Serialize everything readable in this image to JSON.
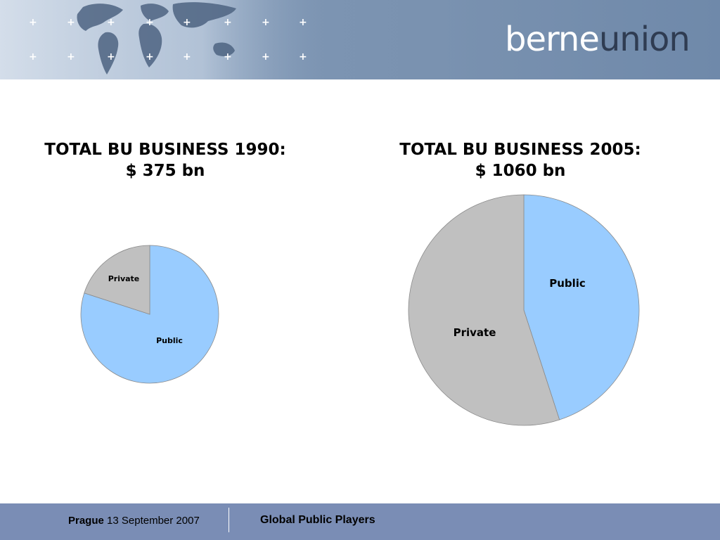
{
  "header": {
    "logo_part1": "berne",
    "logo_part2": "union",
    "decoration_icon": "plus-icon",
    "colors": {
      "band": "#7a92b0",
      "logo_light": "#ffffff",
      "logo_dark": "#2f3c52"
    }
  },
  "chart_data": [
    {
      "type": "pie",
      "title": "TOTAL BU BUSINESS 1990:",
      "subtitle": "$ 375 bn",
      "total": 375,
      "slices": [
        {
          "label": "Public",
          "share": 0.8,
          "color": "#99ccff"
        },
        {
          "label": "Private",
          "share": 0.2,
          "color": "#c0c0c0"
        }
      ]
    },
    {
      "type": "pie",
      "title": "TOTAL BU BUSINESS 2005:",
      "subtitle": "$ 1060 bn",
      "total": 1060,
      "slices": [
        {
          "label": "Public",
          "share": 0.45,
          "color": "#99ccff"
        },
        {
          "label": "Private",
          "share": 0.55,
          "color": "#c0c0c0"
        }
      ]
    }
  ],
  "footer": {
    "city": "Prague",
    "date": "13 September 2007",
    "presentation_title": "Global Public Players"
  }
}
